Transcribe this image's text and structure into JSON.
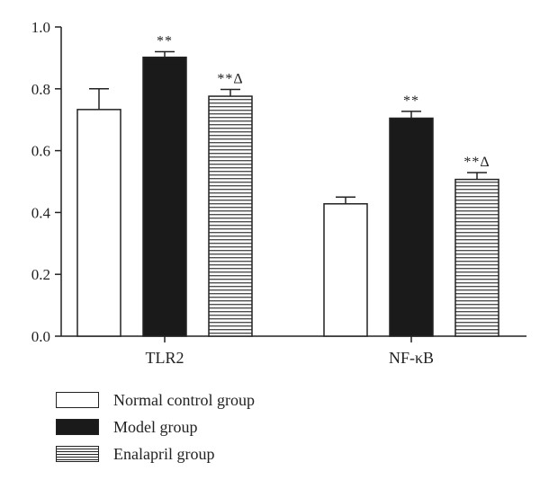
{
  "chart_data": {
    "type": "bar",
    "categories": [
      "TLR2",
      "NF-κB"
    ],
    "ylim": [
      0,
      1.0
    ],
    "yticks": [
      "0.0",
      "0.2",
      "0.4",
      "0.6",
      "0.8",
      "1.0"
    ],
    "series": [
      {
        "name": "Normal control group",
        "fill": "white",
        "values": [
          0.733,
          0.428
        ],
        "errors": [
          0.067,
          0.022
        ],
        "sig": [
          "",
          ""
        ]
      },
      {
        "name": "Model group",
        "fill": "black",
        "values": [
          0.902,
          0.705
        ],
        "errors": [
          0.018,
          0.022
        ],
        "sig": [
          "**",
          "**"
        ]
      },
      {
        "name": "Enalapril group",
        "fill": "striped",
        "values": [
          0.776,
          0.507
        ],
        "errors": [
          0.022,
          0.022
        ],
        "sig": [
          "**Δ",
          "**Δ"
        ]
      }
    ]
  }
}
